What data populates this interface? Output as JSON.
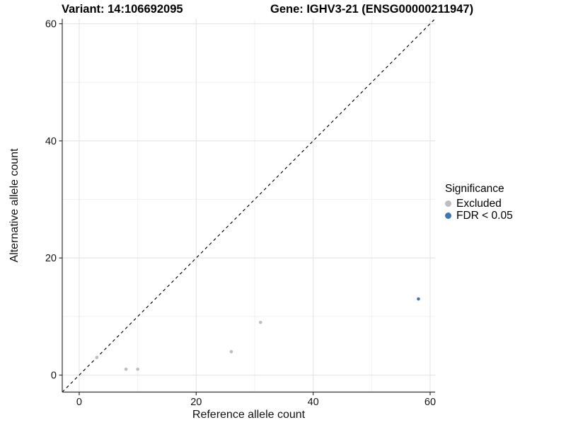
{
  "titles": {
    "variant": "Variant: 14:106692095",
    "gene": "Gene: IGHV3-21 (ENSG00000211947)"
  },
  "axes": {
    "x_label": "Reference allele count",
    "y_label": "Alternative allele count"
  },
  "legend": {
    "title": "Significance",
    "items": [
      {
        "label": "Excluded",
        "color": "#bdbdbd"
      },
      {
        "label": "FDR < 0.05",
        "color": "#3d78b4"
      }
    ]
  },
  "chart_data": {
    "type": "scatter",
    "title": "Variant: 14:106692095 | Gene: IGHV3-21 (ENSG00000211947)",
    "xlabel": "Reference allele count",
    "ylabel": "Alternative allele count",
    "xlim": [
      -2.9,
      60.85
    ],
    "ylim": [
      -2.9,
      60.85
    ],
    "ticks": [
      0,
      20,
      40,
      60
    ],
    "minor_ticks": [
      10,
      30,
      50
    ],
    "grid": true,
    "legend_position": "right",
    "series": [
      {
        "name": "Excluded",
        "color": "#bdbdbd",
        "points": [
          [
            3,
            3
          ],
          [
            8,
            1
          ],
          [
            10,
            1
          ],
          [
            26,
            4
          ],
          [
            31,
            9
          ]
        ]
      },
      {
        "name": "FDR < 0.05",
        "color": "#3d78b4",
        "points": [
          [
            58,
            13
          ]
        ]
      }
    ],
    "reference_line": {
      "slope": 1,
      "intercept": 0,
      "style": "dashed",
      "color": "#000000"
    },
    "style": {
      "major_grid_color": "#e4e4e4",
      "minor_grid_color": "#f0f0f0",
      "axis_color": "#333333",
      "point_radius": 2.3
    }
  }
}
